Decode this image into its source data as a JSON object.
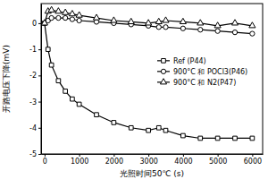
{
  "chart_data": {
    "type": "line",
    "x_label": "光照时间50℃ (s)",
    "y_label": "开路电压下降(mV)",
    "x": [
      0,
      100,
      200,
      400,
      600,
      800,
      1000,
      1500,
      2000,
      2500,
      3000,
      3300,
      3500,
      4000,
      4500,
      5000,
      5500,
      6000
    ],
    "series": [
      {
        "name": "Ref (P44)",
        "color": "#000000",
        "marker": "square",
        "values": [
          0,
          -1.0,
          -1.6,
          -2.2,
          -2.6,
          -2.9,
          -3.1,
          -3.5,
          -3.8,
          -4.0,
          -4.1,
          -4.0,
          -4.1,
          -4.3,
          -4.4,
          -4.4,
          -4.4,
          -4.4
        ]
      },
      {
        "name": "900°C 和 POCl3(P46)",
        "color": "#000000",
        "marker": "circle",
        "values": [
          0,
          0.1,
          0.2,
          0.2,
          0.2,
          0.15,
          0.1,
          0.05,
          0,
          -0.05,
          -0.1,
          -0.15,
          -0.15,
          -0.2,
          -0.25,
          -0.3,
          -0.35,
          -0.4
        ]
      },
      {
        "name": "900°C 和 N2(P47)",
        "color": "#000000",
        "marker": "triangle",
        "values": [
          0,
          0.45,
          0.5,
          0.45,
          0.4,
          0.35,
          0.3,
          0.2,
          0.1,
          0.05,
          0,
          0.05,
          0.1,
          0.05,
          0,
          -0.1,
          0,
          -0.1
        ]
      }
    ],
    "xlim": [
      -100,
      6300
    ],
    "xticks": [
      0,
      1000,
      2000,
      3000,
      4000,
      5000,
      6000
    ],
    "ylim": [
      -5,
      0.75
    ],
    "yticks": [
      -5,
      -4,
      -3,
      -2,
      -1,
      0
    ],
    "legend": "right",
    "grid": false
  }
}
